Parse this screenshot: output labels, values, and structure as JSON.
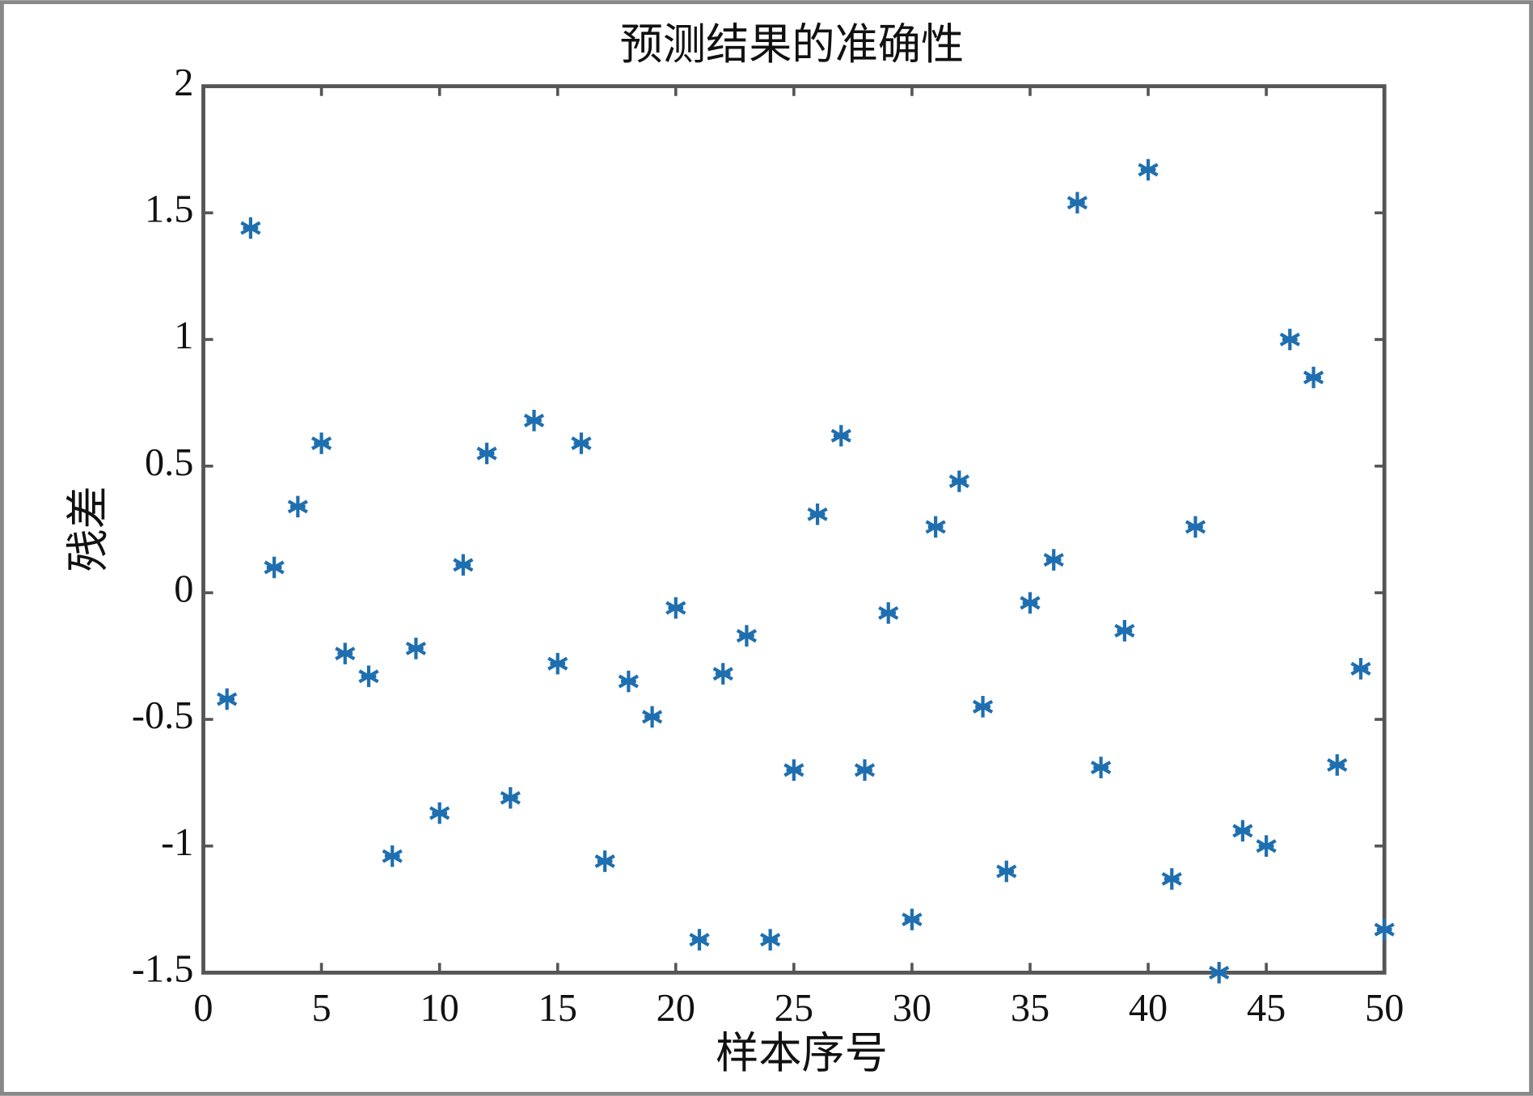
{
  "chart_data": {
    "type": "scatter",
    "title": "预测结果的准确性",
    "x_label": "样本序号",
    "y_label": "残差",
    "x": [
      1,
      2,
      3,
      4,
      5,
      6,
      7,
      8,
      9,
      10,
      11,
      12,
      13,
      14,
      15,
      16,
      17,
      18,
      19,
      20,
      21,
      22,
      23,
      24,
      25,
      26,
      27,
      28,
      29,
      30,
      31,
      32,
      33,
      34,
      35,
      36,
      37,
      38,
      39,
      40,
      41,
      42,
      43,
      44,
      45,
      46,
      47,
      48,
      49,
      50
    ],
    "y": [
      -0.42,
      1.44,
      0.1,
      0.34,
      0.59,
      -0.24,
      -0.33,
      -1.04,
      -0.22,
      -0.87,
      0.11,
      0.55,
      -0.81,
      0.68,
      -0.28,
      0.59,
      -1.06,
      -0.35,
      -0.49,
      -0.06,
      -1.37,
      -0.32,
      -0.17,
      -1.37,
      -0.7,
      0.31,
      0.62,
      -0.7,
      -0.08,
      -1.29,
      0.26,
      0.44,
      -0.45,
      -1.1,
      -0.04,
      0.13,
      1.54,
      -0.69,
      -0.15,
      1.67,
      -1.13,
      0.26,
      -1.5,
      -0.94,
      -1.0,
      1.0,
      0.85,
      -0.68,
      -0.3,
      -1.33
    ],
    "color": "#1f6fb0",
    "marker": "asterisk",
    "xlim": [
      0,
      50
    ],
    "ylim": [
      -1.5,
      2
    ],
    "xticks": [
      0,
      5,
      10,
      15,
      20,
      25,
      30,
      35,
      40,
      45,
      50
    ],
    "yticks": [
      -1.5,
      -1,
      -0.5,
      0,
      0.5,
      1,
      1.5,
      2
    ]
  }
}
